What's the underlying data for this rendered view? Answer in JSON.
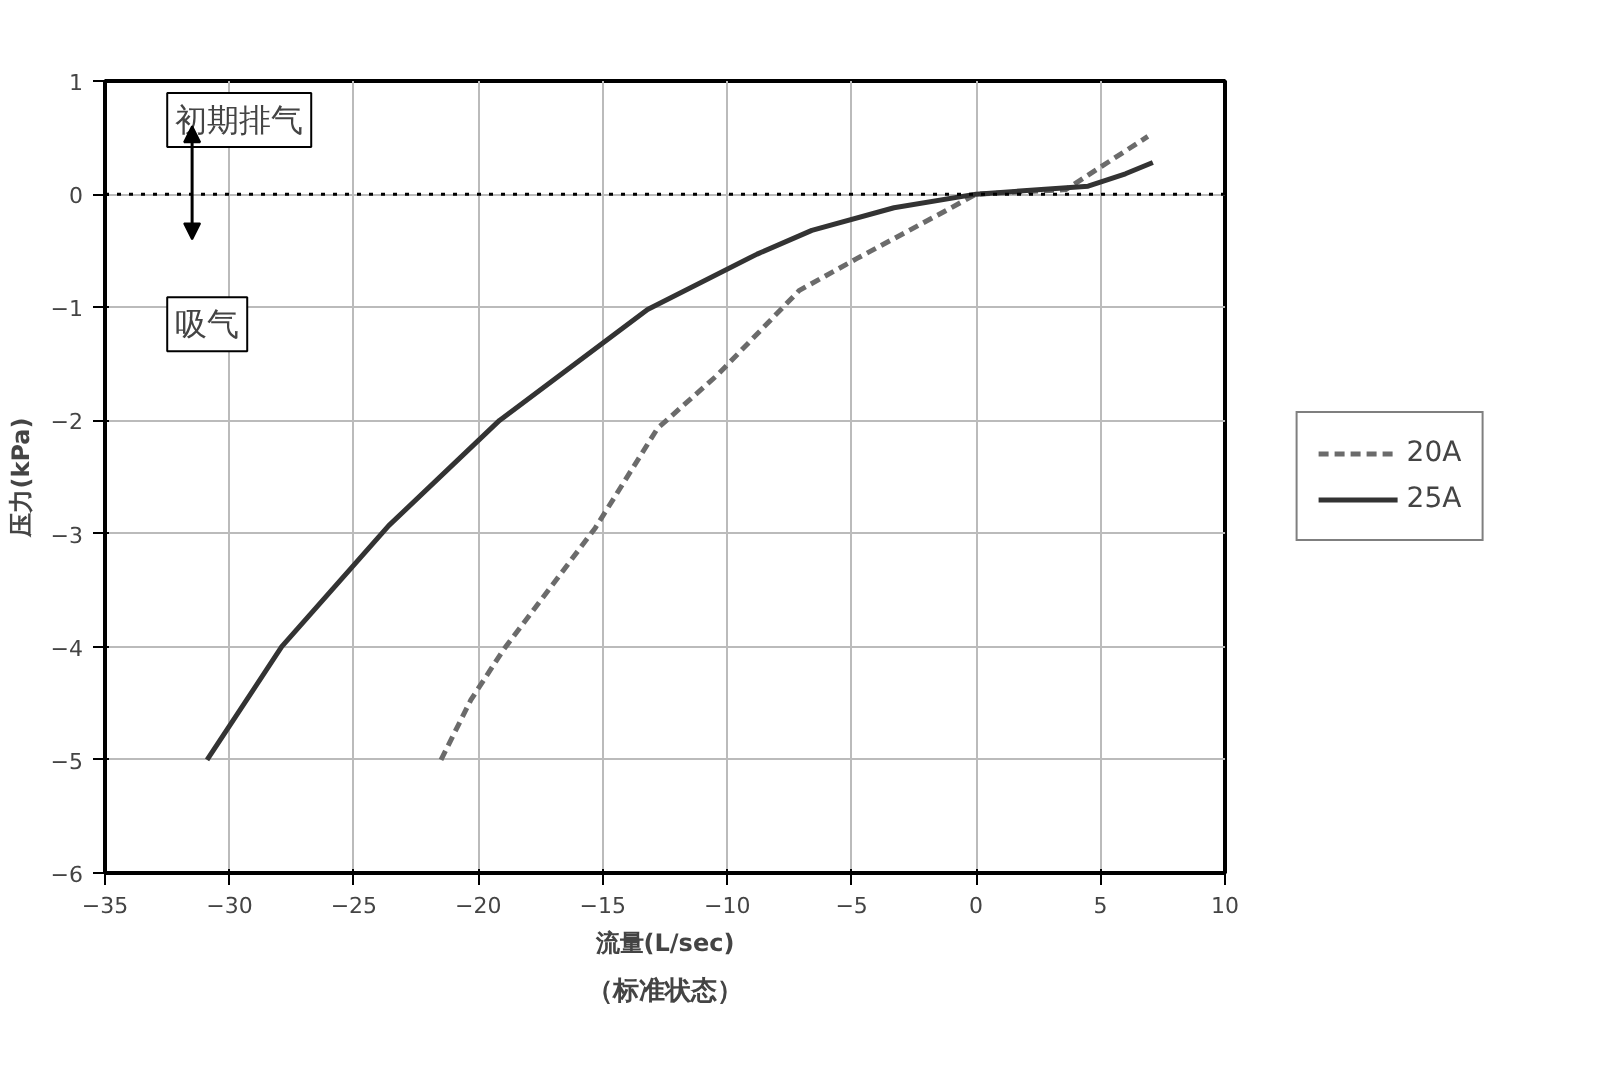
{
  "chart_data": {
    "type": "line",
    "xlabel": "流量(L/sec)",
    "ylabel": "压力(kPa)",
    "xlim": [
      -35,
      10
    ],
    "xticks": [
      -35,
      -30,
      -25,
      -20,
      -15,
      -10,
      -5,
      0,
      5,
      10
    ],
    "ylim": [
      -6,
      1
    ],
    "yticks": [
      -6,
      -5,
      -4,
      -3,
      -2,
      -1,
      0,
      1
    ],
    "grid": true,
    "legend": "right",
    "marker": "none",
    "series": [
      {
        "name": "20A",
        "color": "#6b6b6b",
        "line_style": "dashed",
        "x": [
          -21.5,
          -20.3,
          -19.0,
          -15.3,
          -12.8,
          -10.4,
          -7.1,
          -4.8,
          -1.5,
          0,
          3.6,
          6.9
        ],
        "values": [
          -5,
          -4.47,
          -4.03,
          -2.95,
          -2.07,
          -1.6,
          -0.85,
          -0.57,
          -0.18,
          0,
          0.04,
          0.51
        ]
      },
      {
        "name": "25A",
        "color": "#333333",
        "line_style": "solid",
        "x": [
          -30.9,
          -27.9,
          -23.6,
          -19.15,
          -13.2,
          -8.8,
          -6.6,
          -3.3,
          0,
          4.5,
          6.0,
          7.1
        ],
        "values": [
          -5,
          -4,
          -2.93,
          -2,
          -1.02,
          -0.53,
          -0.32,
          -0.12,
          0,
          0.07,
          0.18,
          0.28
        ]
      }
    ],
    "ref_lines": [
      {
        "axis": "y",
        "value": 0,
        "line_style": "dotted",
        "color": "#000000"
      }
    ],
    "annotations": [
      "初期排气",
      "吸气",
      "（标准状态）"
    ]
  }
}
